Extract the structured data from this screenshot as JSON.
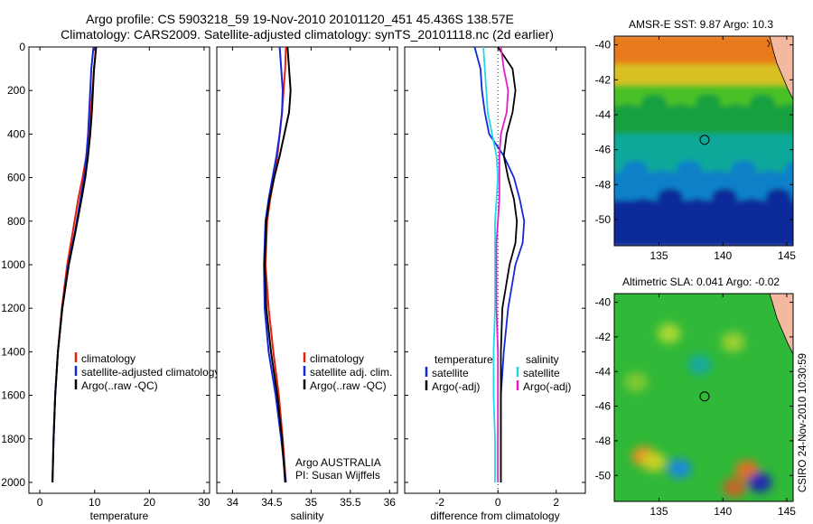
{
  "header": {
    "line1": "Argo profile: CS 5903218_59 19-Nov-2010 20101120_451 45.436S 138.57E",
    "line2": "Climatology: CARS2009. Satellite-adjusted climatology: synTS_20101118.nc (2d earlier)"
  },
  "stamp": "CSIRO 24-Nov-2010 10:30:59",
  "colors": {
    "climatology": "#e8200a",
    "satellite": "#1428d8",
    "argo": "#000000",
    "sat_diff": "#22d8e8",
    "argo_diff": "#e020c8"
  },
  "chart_data": [
    {
      "type": "line",
      "id": "temperature",
      "xlabel": "temperature",
      "ylabel": "",
      "xlim": [
        -2,
        31
      ],
      "ylim": [
        2050,
        0
      ],
      "xticks": [
        0,
        10,
        20,
        30
      ],
      "xticklabels": [
        "0",
        "10",
        "20",
        "30"
      ],
      "yticks": [
        0,
        200,
        400,
        600,
        800,
        1000,
        1200,
        1400,
        1600,
        1800,
        2000
      ],
      "yticklabels": [
        "0",
        "200",
        "400",
        "600",
        "800",
        "1000",
        "1200",
        "1400",
        "1600",
        "1800",
        "2000"
      ],
      "legend": {
        "position": "center-right",
        "entries": [
          "climatology",
          "satellite-adjusted climatology",
          "Argo(..raw -QC)"
        ]
      },
      "annotations": [],
      "series": [
        {
          "name": "climatology",
          "color": "#e8200a",
          "x": [
            10.2,
            10.1,
            9.9,
            9.6,
            9.3,
            9.0,
            8.5,
            7.8,
            7.0,
            6.0,
            5.0,
            4.0,
            3.3,
            2.8,
            2.5,
            2.3
          ],
          "y": [
            0,
            50,
            100,
            200,
            300,
            400,
            500,
            600,
            700,
            850,
            1000,
            1200,
            1400,
            1600,
            1800,
            2000
          ]
        },
        {
          "name": "satellite-adjusted climatology",
          "color": "#1428d8",
          "x": [
            9.8,
            9.6,
            9.4,
            9.2,
            9.0,
            8.8,
            8.5,
            8.1,
            7.4,
            6.4,
            5.2,
            4.1,
            3.3,
            2.8,
            2.5,
            2.3
          ],
          "y": [
            0,
            50,
            100,
            200,
            300,
            400,
            500,
            600,
            700,
            850,
            1000,
            1200,
            1400,
            1600,
            1800,
            2000
          ]
        },
        {
          "name": "Argo(..raw -QC)",
          "color": "#000000",
          "x": [
            10.3,
            10.1,
            9.9,
            9.7,
            9.5,
            9.2,
            8.8,
            8.3,
            7.6,
            6.5,
            5.3,
            4.1,
            3.3,
            2.8,
            2.5,
            2.3
          ],
          "y": [
            0,
            50,
            100,
            200,
            300,
            400,
            500,
            600,
            700,
            850,
            1000,
            1200,
            1400,
            1600,
            1800,
            2000
          ]
        }
      ]
    },
    {
      "type": "line",
      "id": "salinity",
      "xlabel": "salinity",
      "ylabel": "",
      "xlim": [
        33.8,
        36.1
      ],
      "ylim": [
        2050,
        0
      ],
      "xticks": [
        34,
        34.5,
        35,
        35.5,
        36
      ],
      "xticklabels": [
        "34",
        "34.5",
        "35",
        "35.5",
        "36"
      ],
      "legend": {
        "position": "center-right",
        "entries": [
          "climatology",
          "satellite adj. clim.",
          "Argo(..raw -QC)"
        ]
      },
      "annotations": [
        "Argo AUSTRALIA",
        "PI: Susan Wijffels"
      ],
      "series": [
        {
          "name": "climatology",
          "color": "#e8200a",
          "x": [
            34.68,
            34.67,
            34.65,
            34.63,
            34.6,
            34.57,
            34.53,
            34.48,
            34.44,
            34.42,
            34.46,
            34.52,
            34.59,
            34.64,
            34.68
          ],
          "y": [
            0,
            100,
            200,
            300,
            400,
            500,
            600,
            700,
            800,
            1000,
            1200,
            1400,
            1600,
            1800,
            2000
          ]
        },
        {
          "name": "satellite adj. clim.",
          "color": "#1428d8",
          "x": [
            34.6,
            34.62,
            34.64,
            34.63,
            34.6,
            34.56,
            34.51,
            34.46,
            34.42,
            34.4,
            34.41,
            34.46,
            34.55,
            34.62,
            34.68
          ],
          "y": [
            0,
            100,
            200,
            300,
            400,
            500,
            600,
            700,
            800,
            1000,
            1200,
            1400,
            1600,
            1800,
            2000
          ]
        },
        {
          "name": "Argo(..raw -QC)",
          "color": "#000000",
          "x": [
            34.7,
            34.72,
            34.74,
            34.72,
            34.66,
            34.6,
            34.53,
            34.47,
            34.43,
            34.41,
            34.43,
            34.49,
            34.57,
            34.63,
            34.67
          ],
          "y": [
            0,
            100,
            200,
            300,
            400,
            500,
            600,
            700,
            800,
            1000,
            1200,
            1400,
            1600,
            1800,
            2000
          ]
        }
      ]
    },
    {
      "type": "line",
      "id": "difference",
      "xlabel": "difference from climatology",
      "ylabel": "",
      "xlim": [
        -3.2,
        3.0
      ],
      "ylim": [
        2050,
        0
      ],
      "xticks": [
        -2,
        0,
        2
      ],
      "xticklabels": [
        "-2",
        "0",
        "2"
      ],
      "legend": {
        "position": "center",
        "groups": [
          {
            "title": "temperature",
            "entries": [
              "satellite",
              "Argo(-adj)"
            ]
          },
          {
            "title": "salinity",
            "entries": [
              "satellite",
              "Argo(-adj)"
            ]
          }
        ]
      },
      "annotations": [],
      "series": [
        {
          "name": "temperature satellite",
          "color": "#1428d8",
          "x": [
            -0.8,
            -0.6,
            -0.55,
            -0.45,
            -0.3,
            0.2,
            0.55,
            0.75,
            0.9,
            0.85,
            0.6,
            0.35,
            0.2,
            0.1,
            0.1,
            0.1
          ],
          "y": [
            0,
            100,
            200,
            300,
            400,
            500,
            600,
            700,
            800,
            900,
            1000,
            1200,
            1400,
            1600,
            1800,
            2000
          ]
        },
        {
          "name": "temperature Argo(-adj)",
          "color": "#000000",
          "x": [
            0.0,
            0.5,
            0.6,
            0.5,
            0.3,
            0.2,
            0.35,
            0.55,
            0.65,
            0.6,
            0.4,
            0.15,
            0.1,
            0.1,
            0.1,
            0.1
          ],
          "y": [
            0,
            100,
            200,
            300,
            400,
            500,
            600,
            700,
            800,
            900,
            1000,
            1200,
            1400,
            1600,
            1800,
            2000
          ]
        },
        {
          "name": "salinity satellite",
          "color": "#22d8e8",
          "x": [
            -0.5,
            -0.45,
            -0.4,
            -0.35,
            -0.2,
            -0.05,
            0.0,
            -0.05,
            -0.1,
            -0.1,
            -0.1,
            -0.1,
            -0.15,
            -0.15,
            -0.1,
            -0.1
          ],
          "y": [
            0,
            100,
            200,
            300,
            400,
            500,
            600,
            700,
            800,
            900,
            1000,
            1200,
            1400,
            1600,
            1800,
            2000
          ]
        },
        {
          "name": "salinity Argo(-adj)",
          "color": "#e020c8",
          "x": [
            0.1,
            0.2,
            0.35,
            0.3,
            0.1,
            0.05,
            0.05,
            0.05,
            0.0,
            -0.05,
            -0.05,
            -0.05,
            0.0,
            0.0,
            0.0,
            0.0
          ],
          "y": [
            0,
            100,
            200,
            300,
            400,
            500,
            600,
            700,
            800,
            900,
            1000,
            1200,
            1400,
            1600,
            1800,
            2000
          ]
        }
      ]
    },
    {
      "type": "heatmap",
      "id": "sst_map",
      "title": "AMSR-E SST: 9.87 Argo: 10.3",
      "xlim": [
        131.5,
        145.5
      ],
      "ylim": [
        -51.5,
        -39.5
      ],
      "xticks": [
        135,
        140,
        145
      ],
      "xticklabels": [
        "135",
        "140",
        "145"
      ],
      "yticks": [
        -40,
        -42,
        -44,
        -46,
        -48,
        -50
      ],
      "yticklabels": [
        "-40",
        "-42",
        "-44",
        "-46",
        "-48",
        "-50"
      ],
      "marker": {
        "lon": 138.57,
        "lat": -45.436
      },
      "values_note": "warm (orange/red) north, cold (blue) south",
      "bands": [
        {
          "lat_top": -39.5,
          "lat_bottom": -41.2,
          "color": "#e87a1c"
        },
        {
          "lat_top": -41.2,
          "lat_bottom": -42.4,
          "color": "#d8c020"
        },
        {
          "lat_top": -42.4,
          "lat_bottom": -43.6,
          "color": "#48c028"
        },
        {
          "lat_top": -43.6,
          "lat_bottom": -45.2,
          "color": "#18a040"
        },
        {
          "lat_top": -45.2,
          "lat_bottom": -47.4,
          "color": "#10a89a"
        },
        {
          "lat_top": -47.4,
          "lat_bottom": -49.0,
          "color": "#1080c8"
        },
        {
          "lat_top": -49.0,
          "lat_bottom": -51.5,
          "color": "#0a2c9a"
        }
      ]
    },
    {
      "type": "heatmap",
      "id": "sla_map",
      "title": "Altimetric SLA: 0.041 Argo: -0.02",
      "xlim": [
        131.5,
        145.5
      ],
      "ylim": [
        -51.5,
        -39.5
      ],
      "xticks": [
        135,
        140,
        145
      ],
      "xticklabels": [
        "135",
        "140",
        "145"
      ],
      "yticks": [
        -40,
        -42,
        -44,
        -46,
        -48,
        -50
      ],
      "yticklabels": [
        "-40",
        "-42",
        "-44",
        "-46",
        "-48",
        "-50"
      ],
      "marker": {
        "lon": 138.57,
        "lat": -45.436
      },
      "base_color": "#30b838",
      "blobs": [
        {
          "lon": 133.8,
          "lat": -48.9,
          "color": "#e89020"
        },
        {
          "lon": 134.6,
          "lat": -49.2,
          "color": "#c8d020"
        },
        {
          "lon": 136.6,
          "lat": -49.6,
          "color": "#1c8ad8"
        },
        {
          "lon": 141.9,
          "lat": -49.7,
          "color": "#e07020"
        },
        {
          "lon": 142.9,
          "lat": -50.4,
          "color": "#1a2cb0"
        },
        {
          "lon": 140.9,
          "lat": -50.7,
          "color": "#c06828"
        },
        {
          "lon": 135.8,
          "lat": -41.8,
          "color": "#a8d830"
        },
        {
          "lon": 140.8,
          "lat": -42.3,
          "color": "#98d030"
        },
        {
          "lon": 138.2,
          "lat": -43.6,
          "color": "#18a8a0"
        },
        {
          "lon": 133.2,
          "lat": -44.6,
          "color": "#80c830"
        }
      ]
    }
  ]
}
